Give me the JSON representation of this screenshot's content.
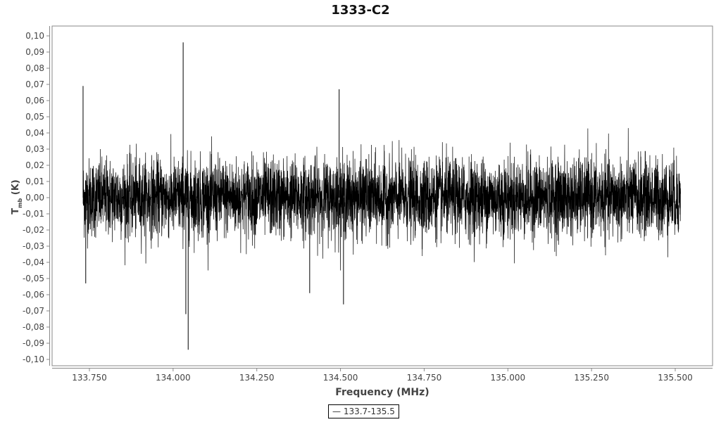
{
  "chart_data": {
    "type": "line",
    "title": "1333-C2",
    "xlabel": "Frequency (MHz)",
    "ylabel": "T",
    "ylabel_sub": "mb",
    "ylabel_unit": "(K)",
    "xlim": [
      133.65,
      135.62
    ],
    "ylim": [
      -0.105,
      0.106
    ],
    "x_ticks": [
      "133.750",
      "134.000",
      "134.250",
      "134.500",
      "134.750",
      "135.000",
      "135.250",
      "135.500"
    ],
    "y_ticks": [
      "0,10",
      "0,09",
      "0,08",
      "0,07",
      "0,06",
      "0,05",
      "0,04",
      "0,03",
      "0,02",
      "0,01",
      "0,00",
      "-0,01",
      "-0,02",
      "-0,03",
      "-0,04",
      "-0,05",
      "-0,06",
      "-0,07",
      "-0,08",
      "-0,09",
      "-0,10"
    ],
    "grid": false,
    "legend_position": "bottom",
    "series": [
      {
        "name": "133.7-135.5",
        "color": "#000000",
        "x_range": [
          133.731,
          135.516
        ],
        "noise_rms": 0.012,
        "mean": 0.0,
        "spikes": [
          {
            "x": 133.731,
            "y": 0.069
          },
          {
            "x": 133.739,
            "y": -0.053
          },
          {
            "x": 134.03,
            "y": 0.096
          },
          {
            "x": 134.038,
            "y": -0.072
          },
          {
            "x": 134.045,
            "y": -0.094
          },
          {
            "x": 134.496,
            "y": 0.067
          },
          {
            "x": 134.509,
            "y": -0.066
          },
          {
            "x": 134.408,
            "y": -0.059
          }
        ]
      }
    ]
  }
}
